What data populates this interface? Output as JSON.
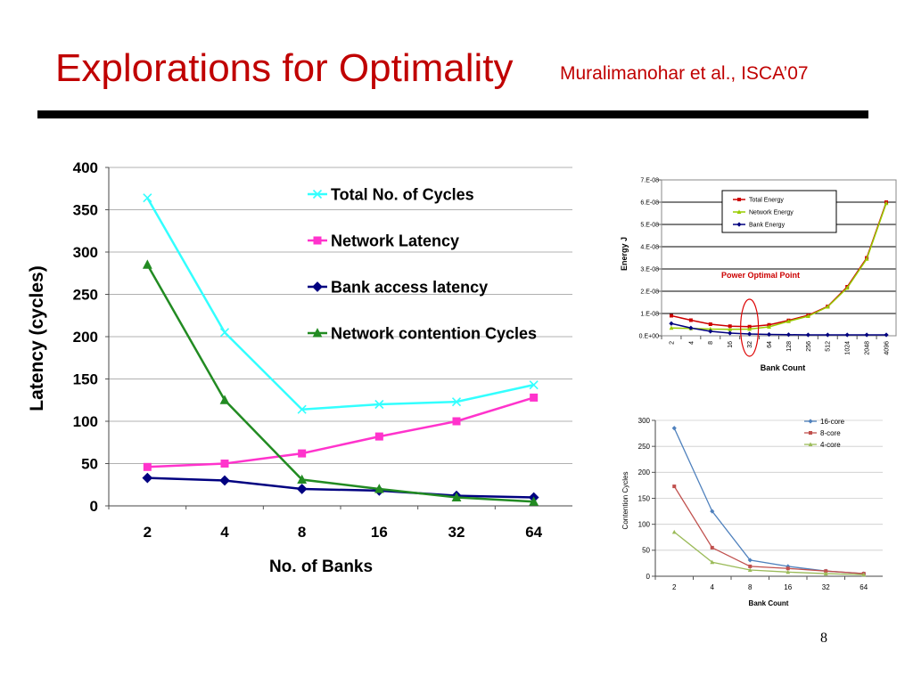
{
  "slide": {
    "title": "Explorations for Optimality",
    "citation": "Muralimanohar et al., ISCA’07",
    "page_number": "8"
  },
  "chart_data": [
    {
      "id": "latency",
      "type": "line",
      "title": "",
      "xlabel": "No. of Banks",
      "ylabel": "Latency (cycles)",
      "categories": [
        "2",
        "4",
        "8",
        "16",
        "32",
        "64"
      ],
      "ylim": [
        0,
        400
      ],
      "yticks": [
        "0",
        "50",
        "100",
        "150",
        "200",
        "250",
        "300",
        "350",
        "400"
      ],
      "grid": true,
      "legend_position": "top-right",
      "series": [
        {
          "name": "Total No. of Cycles",
          "values": [
            364,
            205,
            114,
            120,
            123,
            143
          ],
          "color": "#33ffff",
          "marker": "x"
        },
        {
          "name": "Network Latency",
          "values": [
            46,
            50,
            62,
            82,
            100,
            128
          ],
          "color": "#ff33cc",
          "marker": "square"
        },
        {
          "name": "Bank access latency",
          "values": [
            33,
            30,
            20,
            18,
            12,
            10
          ],
          "color": "#000080",
          "marker": "diamond"
        },
        {
          "name": "Network contention Cycles",
          "values": [
            285,
            125,
            31,
            20,
            10,
            5
          ],
          "color": "#228b22",
          "marker": "triangle"
        }
      ]
    },
    {
      "id": "energy",
      "type": "line",
      "title": "",
      "xlabel": "Bank Count",
      "ylabel": "Energy J",
      "categories": [
        "2",
        "4",
        "8",
        "16",
        "32",
        "64",
        "128",
        "256",
        "512",
        "1024",
        "2048",
        "4096"
      ],
      "ylim": [
        0,
        7e-08
      ],
      "yticks": [
        "0.E+00",
        "1.E-08",
        "2.E-08",
        "3.E-08",
        "4.E-08",
        "5.E-08",
        "6.E-08",
        "7.E-08"
      ],
      "grid": true,
      "legend_position": "top-left",
      "annotation": "Power Optimal Point",
      "highlighted_category": "32",
      "series": [
        {
          "name": "Total Energy",
          "values": [
            9e-09,
            7e-09,
            5.2e-09,
            4.3e-09,
            4.1e-09,
            4.9e-09,
            6.9e-09,
            9.2e-09,
            1.32e-08,
            2.2e-08,
            3.5e-08,
            6e-08
          ],
          "color": "#cc0000",
          "marker": "square"
        },
        {
          "name": "Network Energy",
          "values": [
            3.5e-09,
            3.3e-09,
            3e-09,
            2.9e-09,
            3e-09,
            4e-09,
            6.5e-09,
            8.8e-09,
            1.3e-08,
            2.15e-08,
            3.45e-08,
            5.95e-08
          ],
          "color": "#99cc00",
          "marker": "triangle"
        },
        {
          "name": "Bank Energy",
          "values": [
            5.5e-09,
            3.5e-09,
            2e-09,
            1.2e-09,
            8e-10,
            6e-10,
            5e-10,
            4e-10,
            4e-10,
            4e-10,
            4e-10,
            4e-10
          ],
          "color": "#000080",
          "marker": "diamond"
        }
      ]
    },
    {
      "id": "contention",
      "type": "line",
      "title": "",
      "xlabel": "Bank Count",
      "ylabel": "Contention Cycles",
      "categories": [
        "2",
        "4",
        "8",
        "16",
        "32",
        "64"
      ],
      "ylim": [
        0,
        300
      ],
      "yticks": [
        "0",
        "50",
        "100",
        "150",
        "200",
        "250",
        "300"
      ],
      "grid": true,
      "legend_position": "top-right",
      "series": [
        {
          "name": "16-core",
          "values": [
            285,
            125,
            31,
            19,
            10,
            5
          ],
          "color": "#4f81bd",
          "marker": "diamond"
        },
        {
          "name": "8-core",
          "values": [
            173,
            55,
            19,
            15,
            10,
            5
          ],
          "color": "#c0504d",
          "marker": "square"
        },
        {
          "name": "4-core",
          "values": [
            85,
            27,
            12,
            8,
            5,
            3
          ],
          "color": "#9bbb59",
          "marker": "triangle"
        }
      ]
    }
  ]
}
